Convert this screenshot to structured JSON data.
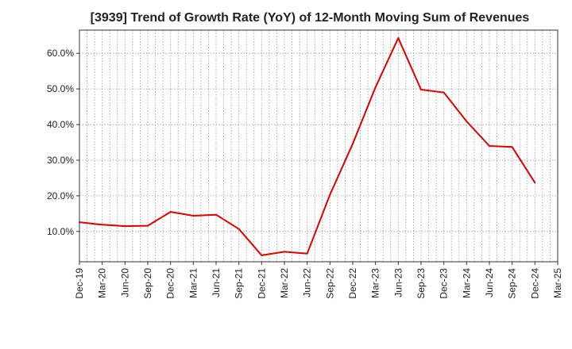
{
  "chart_data": {
    "type": "line",
    "title": "[3939]  Trend of Growth Rate (YoY) of 12-Month Moving Sum of Revenues",
    "xlabel": "",
    "ylabel": "",
    "grid": true,
    "x_ticks": [
      "Dec-19",
      "Mar-20",
      "Jun-20",
      "Sep-20",
      "Dec-20",
      "Mar-21",
      "Jun-21",
      "Sep-21",
      "Dec-21",
      "Mar-22",
      "Jun-22",
      "Sep-22",
      "Dec-22",
      "Mar-23",
      "Jun-23",
      "Sep-23",
      "Dec-23",
      "Mar-24",
      "Jun-24",
      "Sep-24",
      "Dec-24",
      "Mar-25"
    ],
    "y_ticks": [
      "10.0%",
      "20.0%",
      "30.0%",
      "40.0%",
      "50.0%",
      "60.0%"
    ],
    "y_tick_values": [
      10,
      20,
      30,
      40,
      50,
      60
    ],
    "ylim": [
      1.5,
      66.5
    ],
    "series": [
      {
        "color": "#dd0000",
        "x": [
          "Dec-19",
          "Mar-20",
          "Jun-20",
          "Sep-20",
          "Dec-20",
          "Mar-21",
          "Jun-21",
          "Sep-21",
          "Dec-21",
          "Mar-22",
          "Jun-22",
          "Sep-22",
          "Dec-22",
          "Mar-23",
          "Jun-23",
          "Sep-23",
          "Dec-23",
          "Mar-24",
          "Jun-24",
          "Sep-24",
          "Dec-24"
        ],
        "values": [
          12.6,
          11.9,
          11.5,
          11.6,
          15.5,
          14.4,
          14.7,
          10.7,
          3.3,
          4.3,
          3.8,
          20.3,
          34.6,
          50.5,
          64.3,
          49.8,
          49.0,
          40.9,
          34.0,
          33.7,
          23.7
        ]
      }
    ]
  }
}
